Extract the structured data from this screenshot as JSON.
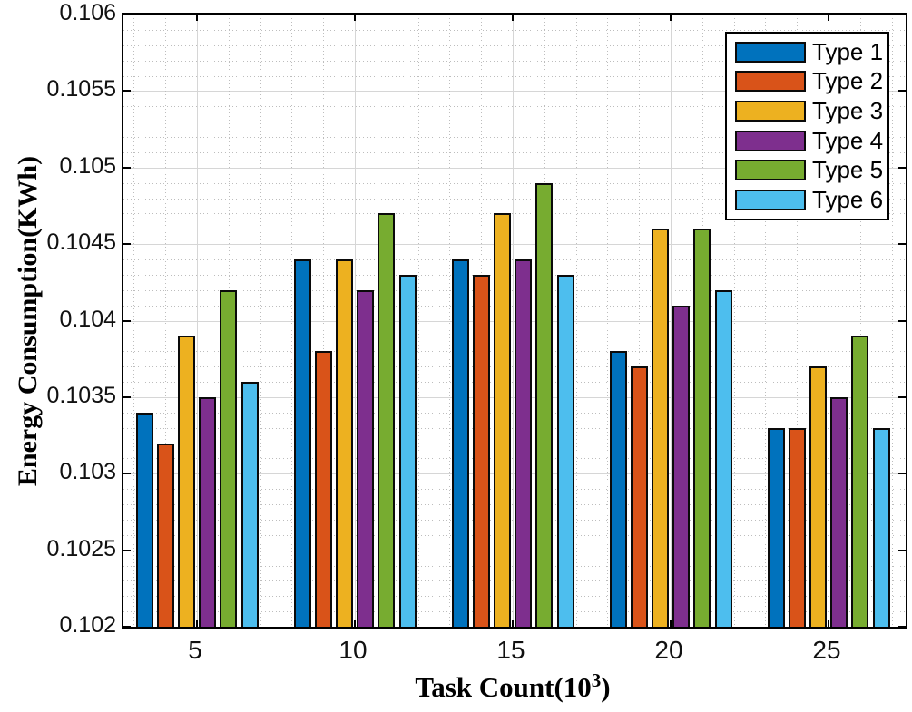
{
  "figure": {
    "background": "#ffffff",
    "axis_color": "#000000",
    "major_grid_color": "#d6d6d6",
    "minor_grid_color": "#bdbdbd"
  },
  "chart_data": {
    "type": "bar",
    "title": "",
    "xlabel": {
      "prefix": "Task Count(10",
      "superscript": "3",
      "suffix": ")"
    },
    "ylabel": "Energy Consumption(KWh)",
    "categories": [
      "5",
      "10",
      "15",
      "20",
      "25"
    ],
    "series": [
      {
        "name": "Type 1",
        "color": "#0072BD",
        "values": [
          0.1034,
          0.1044,
          0.1044,
          0.1038,
          0.1033
        ]
      },
      {
        "name": "Type 2",
        "color": "#D95319",
        "values": [
          0.1032,
          0.1038,
          0.1043,
          0.1037,
          0.1033
        ]
      },
      {
        "name": "Type 3",
        "color": "#EDB120",
        "values": [
          0.1039,
          0.1044,
          0.1047,
          0.1046,
          0.1037
        ]
      },
      {
        "name": "Type 4",
        "color": "#7E2F8E",
        "values": [
          0.1035,
          0.1042,
          0.1044,
          0.1041,
          0.1035
        ]
      },
      {
        "name": "Type 5",
        "color": "#77AC30",
        "values": [
          0.1042,
          0.1047,
          0.1049,
          0.1046,
          0.1039
        ]
      },
      {
        "name": "Type 6",
        "color": "#4DBEEE",
        "values": [
          0.1036,
          0.1043,
          0.1043,
          0.1042,
          0.1033
        ]
      }
    ],
    "ylim": [
      0.102,
      0.106
    ],
    "y_major_step": 0.0005,
    "y_minor_step": 0.0001,
    "y_tick_labels": [
      "0.102",
      "0.1025",
      "0.103",
      "0.1035",
      "0.104",
      "0.1045",
      "0.105",
      "0.1055",
      "0.106"
    ],
    "x_minor_unit": 1,
    "grid": "major-solid, minor-dotted",
    "legend_position": "top-right-inside"
  }
}
